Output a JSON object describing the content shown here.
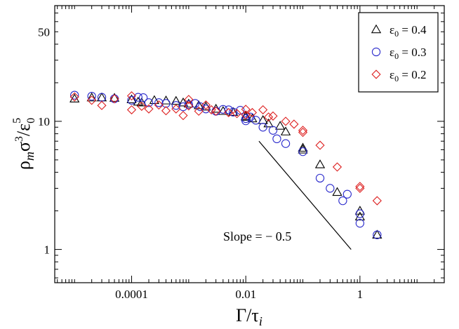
{
  "chart_data": {
    "type": "scatter",
    "title": "",
    "xlabel_main": "Γ/τ",
    "xlabel_sub": "i",
    "ylabel_main": "ρ",
    "ylabel_sub": "m",
    "ylabel_rest": "σ",
    "ylabel_sup1": "3",
    "ylabel_rest2": "/ε",
    "ylabel_sub2": "0",
    "ylabel_sup2": "5",
    "xscale": "log",
    "yscale": "log",
    "xlim": [
      4.5e-06,
      30
    ],
    "ylim": [
      0.55,
      80
    ],
    "x_ticks": [
      {
        "value": 0.0001,
        "label": "0.0001"
      },
      {
        "value": 0.01,
        "label": "0.01"
      },
      {
        "value": 1,
        "label": "1"
      }
    ],
    "y_ticks": [
      {
        "value": 1,
        "label": "1"
      },
      {
        "value": 10,
        "label": "10"
      },
      {
        "value": 50,
        "label": "50"
      }
    ],
    "legend_position": "top-right",
    "series": [
      {
        "name_prefix": "ε",
        "name_sub": "0",
        "name_value": " = 0.4",
        "marker": "triangle",
        "color": "#000000",
        "points": [
          [
            1e-05,
            15.0
          ],
          [
            2e-05,
            15.3
          ],
          [
            3e-05,
            15.3
          ],
          [
            5e-05,
            15.2
          ],
          [
            0.0001,
            14.8
          ],
          [
            0.00013,
            14.2
          ],
          [
            0.00015,
            14.0
          ],
          [
            0.00025,
            14.6
          ],
          [
            0.0004,
            14.5
          ],
          [
            0.0006,
            14.4
          ],
          [
            0.0008,
            14.0
          ],
          [
            0.001,
            13.7
          ],
          [
            0.0015,
            13.3
          ],
          [
            0.002,
            13.0
          ],
          [
            0.003,
            12.5
          ],
          [
            0.004,
            12.0
          ],
          [
            0.006,
            11.8
          ],
          [
            0.01,
            11.0
          ],
          [
            0.01,
            10.8
          ],
          [
            0.013,
            10.5
          ],
          [
            0.02,
            10.2
          ],
          [
            0.025,
            9.6
          ],
          [
            0.04,
            9.2
          ],
          [
            0.05,
            8.3
          ],
          [
            0.1,
            6.2
          ],
          [
            0.1,
            6.0
          ],
          [
            0.2,
            4.6
          ],
          [
            0.4,
            2.8
          ],
          [
            1.0,
            2.0
          ],
          [
            1.0,
            1.8
          ],
          [
            2.0,
            1.3
          ]
        ]
      },
      {
        "name_prefix": "ε",
        "name_sub": "0",
        "name_value": " = 0.3",
        "marker": "circle",
        "color": "#2a2acc",
        "points": [
          [
            1e-05,
            16.0
          ],
          [
            2e-05,
            15.7
          ],
          [
            3e-05,
            15.4
          ],
          [
            5e-05,
            15.0
          ],
          [
            0.0001,
            14.6
          ],
          [
            0.00013,
            15.4
          ],
          [
            0.00016,
            15.3
          ],
          [
            0.0002,
            14.0
          ],
          [
            0.0003,
            14.0
          ],
          [
            0.0004,
            13.8
          ],
          [
            0.0006,
            13.3
          ],
          [
            0.0008,
            13.0
          ],
          [
            0.001,
            13.5
          ],
          [
            0.0013,
            13.8
          ],
          [
            0.0016,
            13.0
          ],
          [
            0.002,
            12.5
          ],
          [
            0.003,
            12.0
          ],
          [
            0.004,
            12.4
          ],
          [
            0.005,
            12.3
          ],
          [
            0.006,
            11.8
          ],
          [
            0.008,
            12.2
          ],
          [
            0.01,
            10.5
          ],
          [
            0.01,
            10.1
          ],
          [
            0.012,
            10.8
          ],
          [
            0.015,
            10.2
          ],
          [
            0.02,
            9.0
          ],
          [
            0.03,
            8.5
          ],
          [
            0.035,
            7.3
          ],
          [
            0.05,
            6.7
          ],
          [
            0.1,
            5.8
          ],
          [
            0.2,
            3.6
          ],
          [
            0.3,
            3.0
          ],
          [
            0.5,
            2.4
          ],
          [
            0.6,
            2.7
          ],
          [
            1.0,
            1.9
          ],
          [
            1.0,
            1.6
          ],
          [
            2.0,
            1.3
          ]
        ]
      },
      {
        "name_prefix": "ε",
        "name_sub": "0",
        "name_value": " = 0.2",
        "marker": "diamond",
        "color": "#dd2020",
        "points": [
          [
            1e-05,
            15.5
          ],
          [
            2e-05,
            14.6
          ],
          [
            3e-05,
            13.3
          ],
          [
            5e-05,
            15.0
          ],
          [
            0.0001,
            12.3
          ],
          [
            0.0001,
            15.8
          ],
          [
            0.00015,
            13.1
          ],
          [
            0.0002,
            12.5
          ],
          [
            0.0003,
            13.4
          ],
          [
            0.0004,
            12.1
          ],
          [
            0.0006,
            12.5
          ],
          [
            0.0008,
            11.1
          ],
          [
            0.001,
            14.8
          ],
          [
            0.001,
            13.2
          ],
          [
            0.0015,
            12.0
          ],
          [
            0.002,
            13.4
          ],
          [
            0.0025,
            12.3
          ],
          [
            0.003,
            12.0
          ],
          [
            0.005,
            11.7
          ],
          [
            0.007,
            11.5
          ],
          [
            0.01,
            12.4
          ],
          [
            0.01,
            11.2
          ],
          [
            0.013,
            11.7
          ],
          [
            0.02,
            12.3
          ],
          [
            0.025,
            10.8
          ],
          [
            0.03,
            11.0
          ],
          [
            0.05,
            10.0
          ],
          [
            0.07,
            9.5
          ],
          [
            0.1,
            8.5
          ],
          [
            0.1,
            8.2
          ],
          [
            0.2,
            6.5
          ],
          [
            0.4,
            4.4
          ],
          [
            1.0,
            3.1
          ],
          [
            1.0,
            3.0
          ],
          [
            2.0,
            2.4
          ]
        ]
      }
    ],
    "annotation": {
      "text": "Slope = − 0.5",
      "line_start": [
        0.017,
        7.0
      ],
      "line_end": [
        0.7,
        1.0
      ]
    }
  }
}
